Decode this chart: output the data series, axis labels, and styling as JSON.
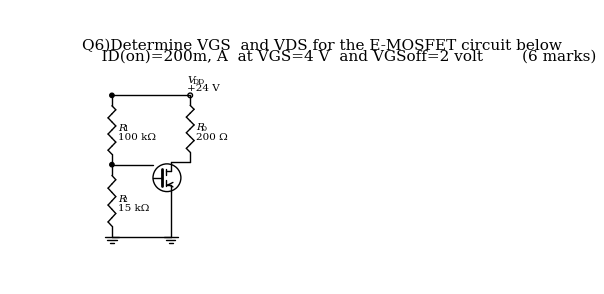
{
  "title_line1": "Q6)Determine VGS  and VDS for the E-MOSFET circuit below",
  "title_line2": "    ID(on)=200m, A  at VGS=4 V  and VGSoff=2 volt        (6 marks)",
  "vdd_label_v": "V",
  "vdd_label_dd": "DD",
  "vdd_val": "+24 V",
  "rd_label_r": "R",
  "rd_label_d": "D",
  "rd_val": "200 Ω",
  "r1_label_r": "R",
  "r1_label_1": "1",
  "r1_val": "100 kΩ",
  "r2_label_r": "R",
  "r2_label_2": "2",
  "r2_val": "15 kΩ",
  "bg_color": "#ffffff",
  "line_color": "#000000",
  "text_color": "#000000",
  "font_size_title": 11,
  "font_size_labels": 7.5
}
